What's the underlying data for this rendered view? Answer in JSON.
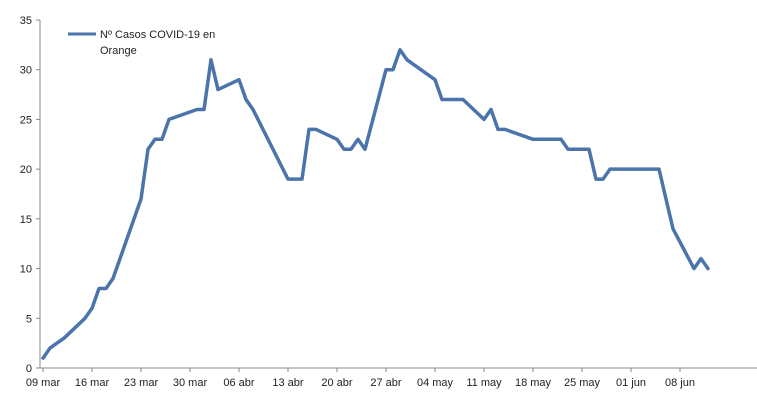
{
  "chart_data": {
    "type": "line",
    "title": "",
    "xlabel": "",
    "ylabel": "",
    "ylim": [
      0,
      35
    ],
    "y_ticks": [
      0,
      5,
      10,
      15,
      20,
      25,
      30,
      35
    ],
    "x_ticks": [
      {
        "label": "09 mar",
        "day": 0
      },
      {
        "label": "16 mar",
        "day": 7
      },
      {
        "label": "23 mar",
        "day": 14
      },
      {
        "label": "30 mar",
        "day": 21
      },
      {
        "label": "06 abr",
        "day": 28
      },
      {
        "label": "13 abr",
        "day": 35
      },
      {
        "label": "20 abr",
        "day": 42
      },
      {
        "label": "27 abr",
        "day": 49
      },
      {
        "label": "04 may",
        "day": 56
      },
      {
        "label": "11 may",
        "day": 63
      },
      {
        "label": "18 may",
        "day": 70
      },
      {
        "label": "25 may",
        "day": 77
      },
      {
        "label": "01 jun",
        "day": 84
      },
      {
        "label": "08 jun",
        "day": 91
      }
    ],
    "grid": false,
    "legend": {
      "placement": "top-left",
      "label_lines": [
        "Nº Casos COVID-19 en",
        "Orange"
      ]
    },
    "colors": {
      "line": "#4a74aa",
      "axis": "#888888"
    },
    "series": [
      {
        "name": "Nº Casos COVID-19 en Orange",
        "points": [
          [
            0,
            1
          ],
          [
            1,
            2
          ],
          [
            2,
            2.5
          ],
          [
            3,
            3
          ],
          [
            6,
            5
          ],
          [
            7,
            6
          ],
          [
            8,
            8
          ],
          [
            9,
            8
          ],
          [
            10,
            9
          ],
          [
            13,
            15
          ],
          [
            14,
            17
          ],
          [
            15,
            22
          ],
          [
            16,
            23
          ],
          [
            17,
            23
          ],
          [
            18,
            25
          ],
          [
            22,
            26
          ],
          [
            23,
            26
          ],
          [
            24,
            31
          ],
          [
            25,
            28
          ],
          [
            28,
            29
          ],
          [
            29,
            27
          ],
          [
            30,
            26
          ],
          [
            35,
            19
          ],
          [
            37,
            19
          ],
          [
            38,
            24
          ],
          [
            39,
            24
          ],
          [
            42,
            23
          ],
          [
            43,
            22
          ],
          [
            44,
            22
          ],
          [
            45,
            23
          ],
          [
            46,
            22
          ],
          [
            49,
            30
          ],
          [
            50,
            30
          ],
          [
            51,
            32
          ],
          [
            52,
            31
          ],
          [
            56,
            29
          ],
          [
            57,
            27
          ],
          [
            60,
            27
          ],
          [
            63,
            25
          ],
          [
            64,
            26
          ],
          [
            65,
            24
          ],
          [
            66,
            24
          ],
          [
            70,
            23
          ],
          [
            74,
            23
          ],
          [
            75,
            22
          ],
          [
            78,
            22
          ],
          [
            79,
            19
          ],
          [
            80,
            19
          ],
          [
            81,
            20
          ],
          [
            88,
            20
          ],
          [
            90,
            14
          ],
          [
            93,
            10
          ],
          [
            94,
            11
          ],
          [
            95,
            10
          ]
        ]
      }
    ]
  }
}
